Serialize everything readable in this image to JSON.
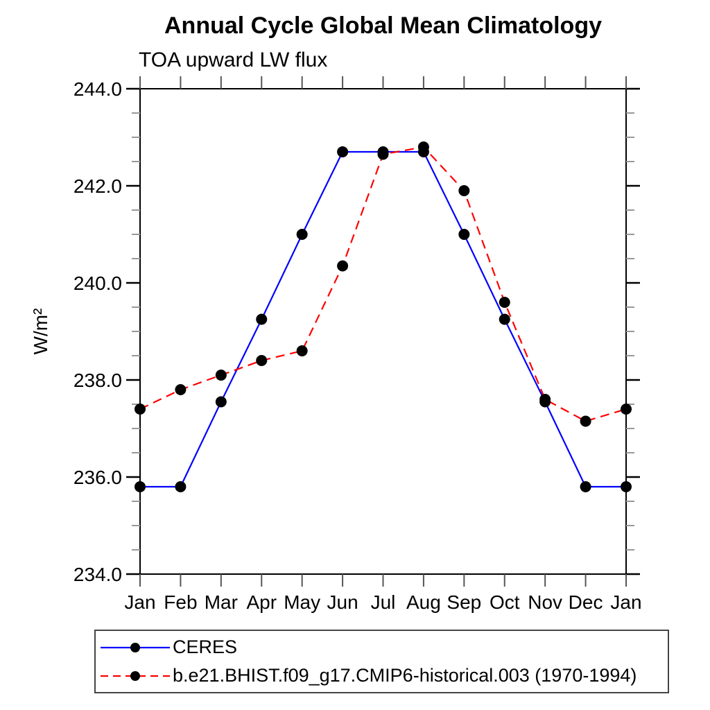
{
  "title": "Annual Cycle Global Mean Climatology",
  "subtitle": "TOA upward LW flux",
  "chart_data": {
    "type": "line",
    "x_categories": [
      "Jan",
      "Feb",
      "Mar",
      "Apr",
      "May",
      "Jun",
      "Jul",
      "Aug",
      "Sep",
      "Oct",
      "Nov",
      "Dec",
      "Jan"
    ],
    "ylabel": "W/m²",
    "ylim": [
      234.0,
      244.0
    ],
    "yticks_major": [
      234.0,
      236.0,
      238.0,
      240.0,
      242.0,
      244.0
    ],
    "ytick_minor_step": 0.5,
    "grid": "off",
    "legend_position": "bottom-left-box",
    "axis_color": "#000000",
    "minor_tick_color": "#999999",
    "month_tick_color": "#555555",
    "marker_color": "#000000",
    "series": [
      {
        "name": "CERES",
        "color": "#0000ff",
        "style": "solid",
        "values": [
          235.8,
          235.8,
          237.55,
          239.25,
          241.0,
          242.7,
          242.7,
          242.7,
          241.0,
          239.25,
          237.55,
          235.8,
          235.8
        ]
      },
      {
        "name": "b.e21.BHIST.f09_g17.CMIP6-historical.003 (1970-1994)",
        "color": "#ff0000",
        "style": "dashed",
        "values": [
          237.4,
          237.8,
          238.1,
          238.4,
          238.6,
          240.35,
          242.65,
          242.8,
          241.9,
          239.6,
          237.6,
          237.15,
          237.4
        ]
      }
    ]
  }
}
